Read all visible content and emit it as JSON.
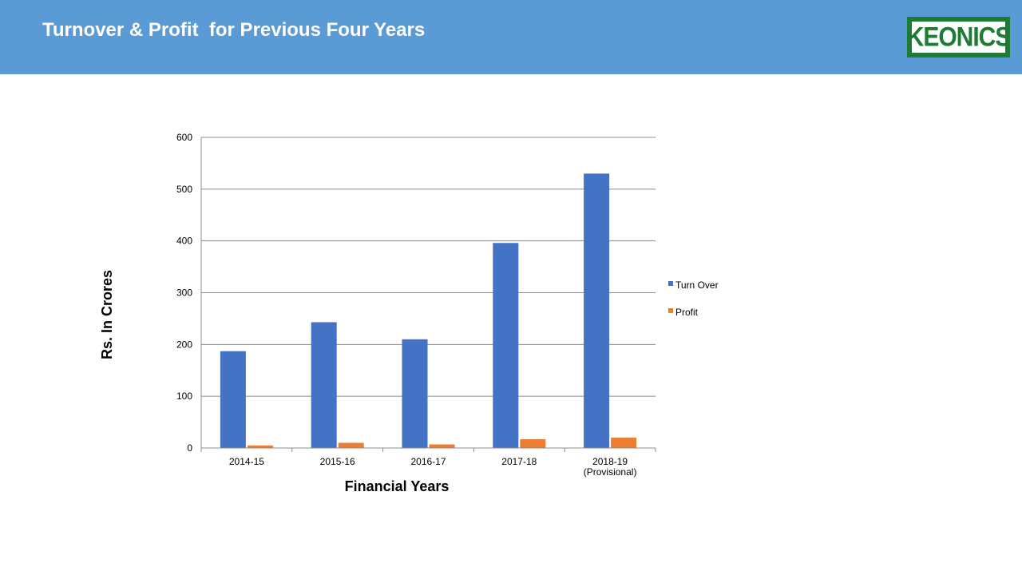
{
  "slide": {
    "title": "Turnover & Profit  for Previous Four Years",
    "logo_text": "KEONICS"
  },
  "colors": {
    "header": "#5b9bd5",
    "turnover": "#4472c4",
    "profit": "#ed7d31",
    "logo": "#1e7b34"
  },
  "chart_data": {
    "type": "bar",
    "categories": [
      [
        "2014-15"
      ],
      [
        "2015-16"
      ],
      [
        "2016-17"
      ],
      [
        "2017-18"
      ],
      [
        "2018-19",
        "(Provisional)"
      ]
    ],
    "series": [
      {
        "name": "Turn Over",
        "values": [
          187,
          243,
          210,
          396,
          530
        ]
      },
      {
        "name": "Profit",
        "values": [
          5,
          10,
          7,
          17,
          20
        ]
      }
    ],
    "xlabel": "Financial Years",
    "ylabel": "Rs. In Crores",
    "ylim": [
      0,
      600
    ],
    "yticks": [
      0,
      100,
      200,
      300,
      400,
      500,
      600
    ],
    "grid": true,
    "legend": "right"
  }
}
